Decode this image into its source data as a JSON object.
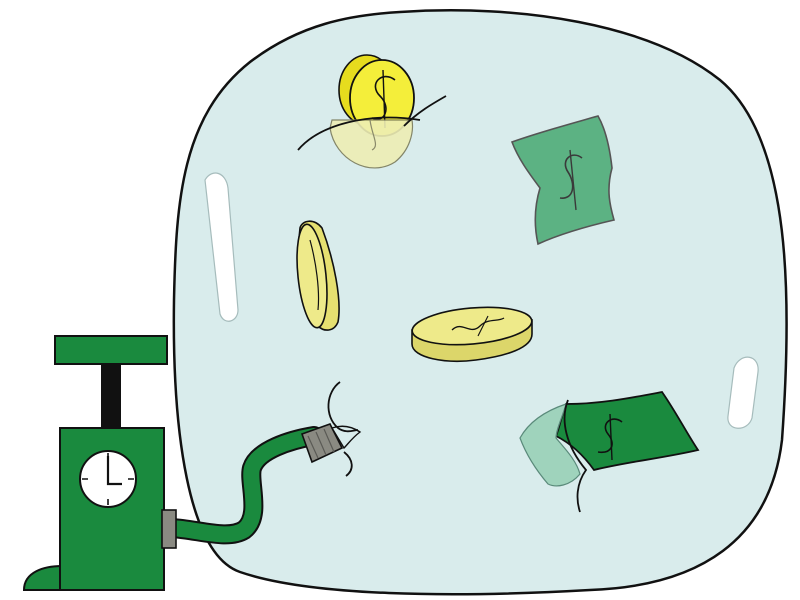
{
  "scene": {
    "subject": "bubble-illustration",
    "colors": {
      "bubble_fill": "#d9ecec",
      "outline": "#111111",
      "coin_yellow": "#f4ee3a",
      "coin_pale": "#eeea8a",
      "bill_green": "#1a8a3e",
      "bill_faded": "#5cb283",
      "pump_green": "#1a8a3e",
      "connector_gray": "#8a8a82",
      "highlight": "#ffffff"
    },
    "icons": [
      "bubble",
      "coin",
      "dollar-bill",
      "air-pump",
      "pressure-gauge",
      "hose"
    ]
  }
}
